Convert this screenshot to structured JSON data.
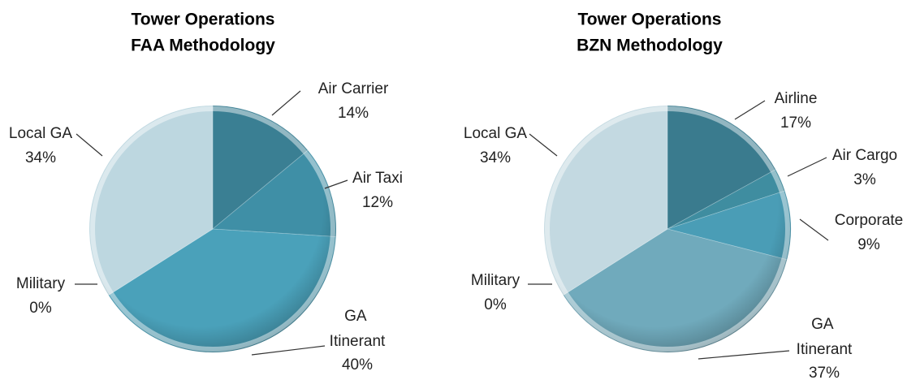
{
  "chart_data": [
    {
      "type": "pie",
      "title": "Tower Operations",
      "subtitle": "FAA Methodology",
      "categories": [
        "Air Carrier",
        "Air Taxi",
        "GA Itinerant",
        "Military",
        "Local GA"
      ],
      "values": [
        14,
        12,
        40,
        0,
        34
      ],
      "value_labels": [
        "14%",
        "12%",
        "40%",
        "0%",
        "34%"
      ],
      "colors": [
        "#3a7f93",
        "#3f8fa6",
        "#4aa1ba",
        "#5a9fb3",
        "#bdd7e0"
      ]
    },
    {
      "type": "pie",
      "title": "Tower Operations",
      "subtitle": "BZN Methodology",
      "categories": [
        "Airline",
        "Air Cargo",
        "Corporate",
        "GA Itinerant",
        "Military",
        "Local GA"
      ],
      "values": [
        17,
        3,
        9,
        37,
        0,
        34
      ],
      "value_labels": [
        "17%",
        "3%",
        "9%",
        "37%",
        "0%",
        "34%"
      ],
      "colors": [
        "#3a7b8e",
        "#3f8da0",
        "#4a9db6",
        "#70aabc",
        "#5a9fb3",
        "#c3d9e1"
      ]
    }
  ]
}
